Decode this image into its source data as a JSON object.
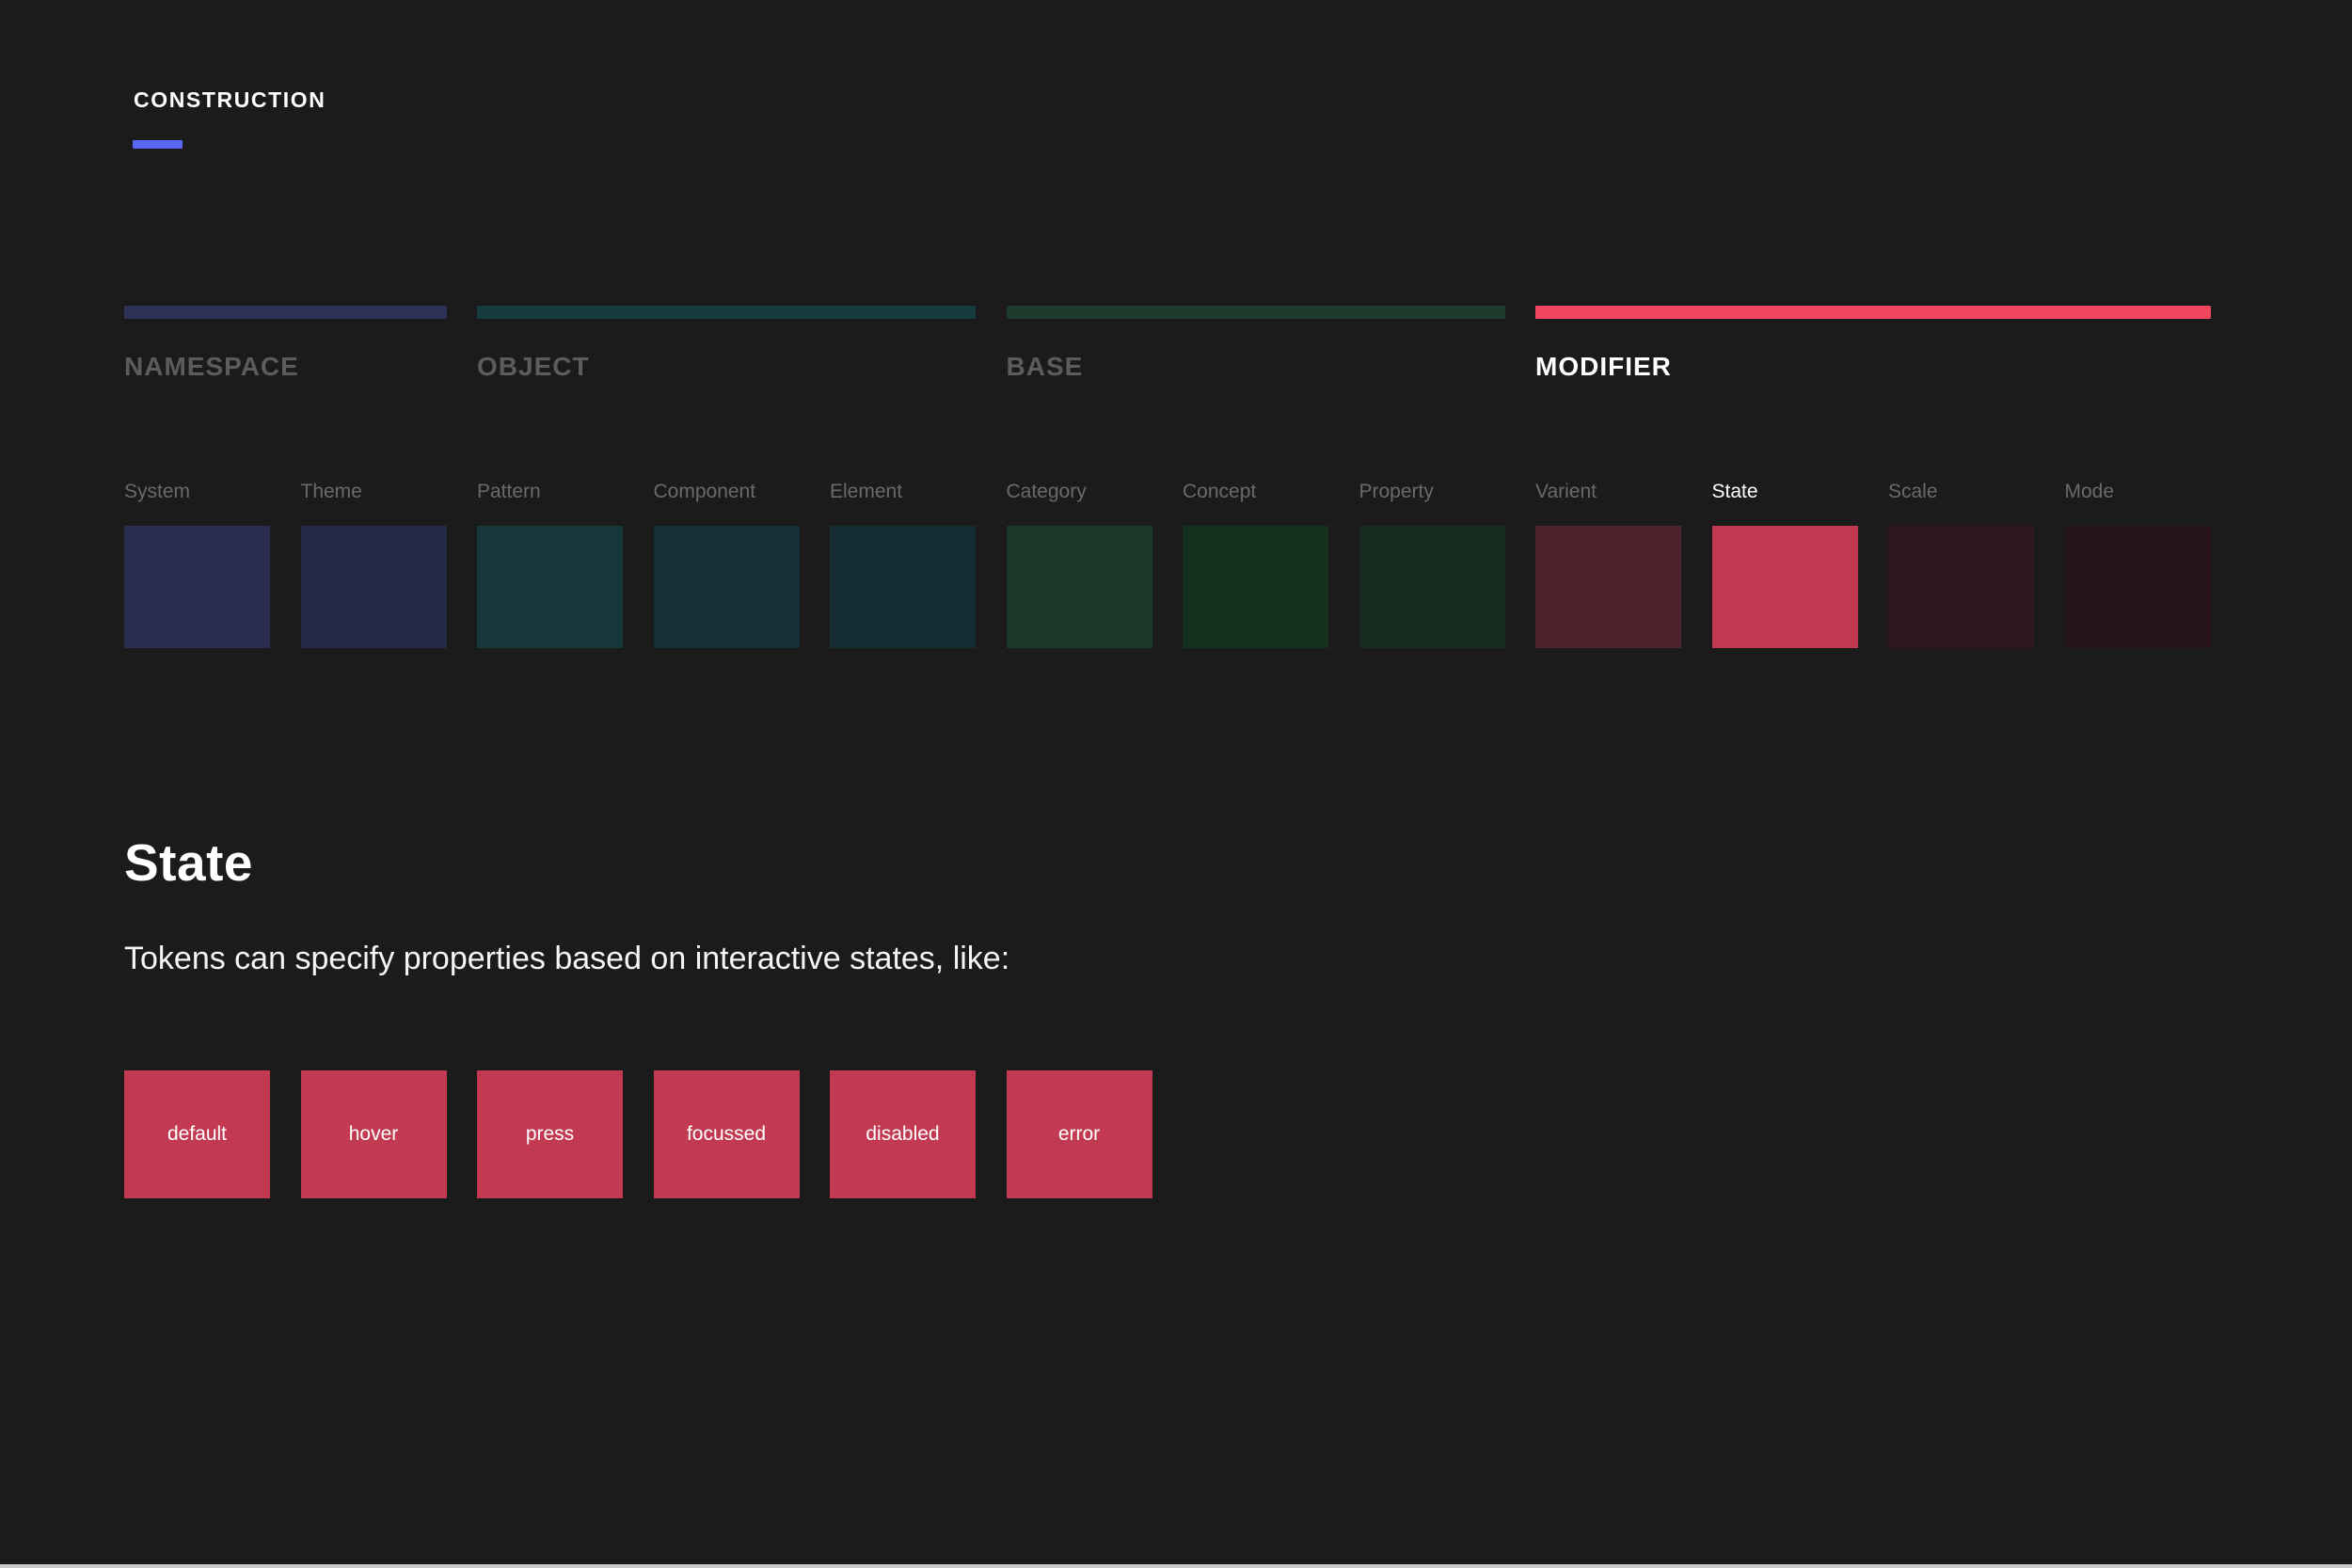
{
  "header": {
    "eyebrow": "CONSTRUCTION",
    "accent_color": "#5b68f5"
  },
  "groups": [
    {
      "title": "NAMESPACE",
      "bar_color": "#2e3156",
      "active": false,
      "columns": [
        {
          "label": "System",
          "color": "#2a2d4f",
          "active": false
        },
        {
          "label": "Theme",
          "color": "#272a46",
          "active": false
        }
      ]
    },
    {
      "title": "OBJECT",
      "bar_color": "#173a3d",
      "active": false,
      "columns": [
        {
          "label": "Pattern",
          "color": "#16383a",
          "active": false
        },
        {
          "label": "Component",
          "color": "#152f38",
          "active": false
        },
        {
          "label": "Element",
          "color": "#142c32",
          "active": false
        }
      ]
    },
    {
      "title": "BASE",
      "bar_color": "#1c3b2b",
      "active": false,
      "columns": [
        {
          "label": "Category",
          "color": "#1a3929",
          "active": false
        },
        {
          "label": "Concept",
          "color": "#163020",
          "active": false
        },
        {
          "label": "Property",
          "color": "#142b1d",
          "active": false
        }
      ]
    },
    {
      "title": "MODIFIER",
      "bar_color": "#f4455e",
      "active": true,
      "columns": [
        {
          "label": "Varient",
          "color": "#4e242c",
          "active": false
        },
        {
          "label": "State",
          "color": "#c23a51",
          "active": true
        },
        {
          "label": "Scale",
          "color": "#2e181d",
          "active": false
        },
        {
          "label": "Mode",
          "color": "#271419",
          "active": false
        }
      ]
    }
  ],
  "detail": {
    "heading": "State",
    "description": "Tokens can specify properties based on interactive states, like:",
    "swatches": [
      {
        "label": "default",
        "color": "#c23a51"
      },
      {
        "label": "hover",
        "color": "#c23a51"
      },
      {
        "label": "press",
        "color": "#c23a51"
      },
      {
        "label": "focussed",
        "color": "#c23a51"
      },
      {
        "label": "disabled",
        "color": "#c23a51"
      },
      {
        "label": "error",
        "color": "#c23a51"
      }
    ]
  }
}
